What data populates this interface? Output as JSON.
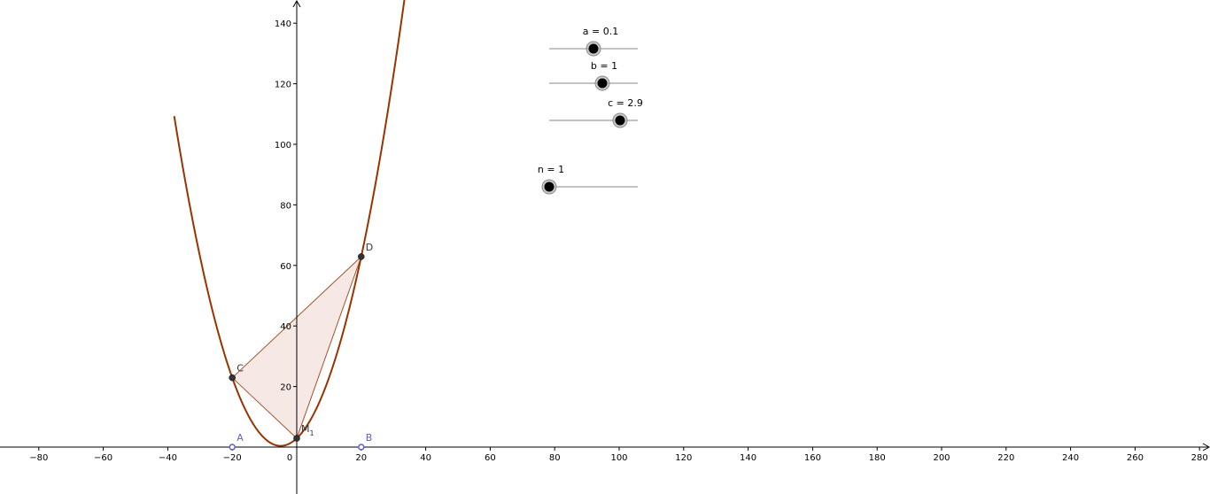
{
  "axes": {
    "x_ticks": [
      -80,
      -60,
      -40,
      -20,
      0,
      20,
      40,
      60,
      80,
      100,
      120,
      140,
      160,
      180,
      200,
      220,
      240,
      260,
      280
    ],
    "y_ticks": [
      20,
      40,
      60,
      80,
      100,
      120,
      140
    ]
  },
  "sliders": [
    {
      "label": "a = 0.1",
      "fraction": 0.5
    },
    {
      "label": "b = 1",
      "fraction": 0.6
    },
    {
      "label": "c = 2.9",
      "fraction": 0.8
    },
    {
      "label": "n = 1",
      "fraction": 0.0
    }
  ],
  "parabola": {
    "a": 0.1,
    "b": 1,
    "c": 2.9,
    "x_range": [
      -38,
      38
    ]
  },
  "points": [
    {
      "label": "A",
      "sub": "",
      "x": -20,
      "y": 0,
      "style": "axis-point",
      "color": "#5e5ecc"
    },
    {
      "label": "B",
      "sub": "",
      "x": 20,
      "y": 0,
      "style": "axis-point",
      "color": "#5e5ecc"
    },
    {
      "label": "C",
      "sub": "",
      "x": -20,
      "y": 22.9,
      "style": "dark",
      "color": "#333333"
    },
    {
      "label": "D",
      "sub": "",
      "x": 20,
      "y": 62.9,
      "style": "dark",
      "color": "#333333"
    },
    {
      "label": "M",
      "sub": "1",
      "x": 0,
      "y": 2.9,
      "style": "dark",
      "color": "#333333"
    }
  ],
  "triangle": [
    "C",
    "D",
    "M"
  ],
  "colors": {
    "curve": "#993300",
    "triangle_fill": "#f4e5e0",
    "triangle_stroke": "#a0522d",
    "axis": "#000000",
    "slider_track": "#888888",
    "slider_knob": "#000000"
  }
}
